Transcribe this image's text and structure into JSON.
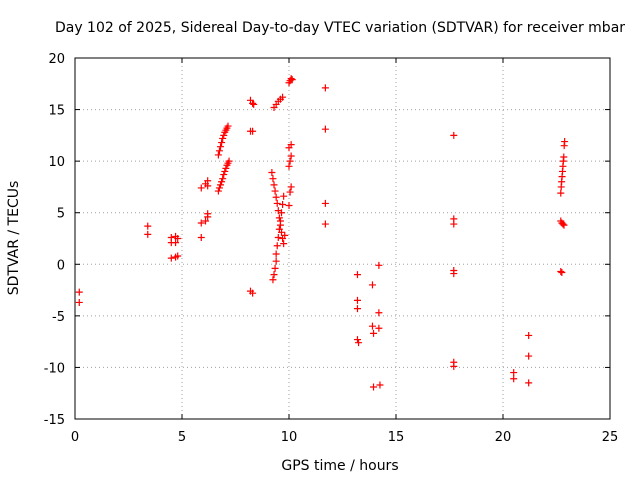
{
  "chart_data": {
    "type": "scatter",
    "title": "Day 102 of 2025, Sidereal Day-to-day VTEC variation (SDTVAR) for receiver mbar",
    "xlabel": "GPS time / hours",
    "ylabel": "SDTVAR / TECUs",
    "xlim": [
      0,
      25
    ],
    "ylim": [
      -15,
      20
    ],
    "xticks": [
      "0",
      "5",
      "10",
      "15",
      "20",
      "25"
    ],
    "yticks": [
      "20",
      "15",
      "10",
      "5",
      "0",
      "-5",
      "-10",
      "-15"
    ],
    "grid": true,
    "marker": "plus",
    "color": "#ff0000",
    "points": [
      [
        0.2,
        -2.7
      ],
      [
        0.2,
        -3.7
      ],
      [
        3.4,
        3.7
      ],
      [
        3.4,
        2.9
      ],
      [
        4.5,
        2.6
      ],
      [
        4.5,
        2.1
      ],
      [
        4.5,
        0.6
      ],
      [
        4.7,
        2.7
      ],
      [
        4.7,
        2.1
      ],
      [
        4.7,
        0.7
      ],
      [
        4.8,
        2.5
      ],
      [
        4.8,
        0.8
      ],
      [
        5.9,
        7.4
      ],
      [
        5.9,
        4.0
      ],
      [
        5.9,
        2.6
      ],
      [
        6.1,
        7.8
      ],
      [
        6.1,
        4.2
      ],
      [
        6.2,
        8.1
      ],
      [
        6.2,
        7.6
      ],
      [
        6.2,
        4.9
      ],
      [
        6.2,
        4.6
      ],
      [
        6.7,
        10.6
      ],
      [
        6.75,
        11.0
      ],
      [
        6.8,
        11.4
      ],
      [
        6.85,
        11.8
      ],
      [
        6.9,
        12.2
      ],
      [
        6.95,
        12.5
      ],
      [
        7.0,
        12.8
      ],
      [
        7.05,
        13.0
      ],
      [
        7.1,
        13.2
      ],
      [
        7.15,
        13.4
      ],
      [
        6.7,
        7.1
      ],
      [
        6.75,
        7.4
      ],
      [
        6.8,
        7.7
      ],
      [
        6.85,
        8.0
      ],
      [
        6.9,
        8.3
      ],
      [
        6.95,
        8.7
      ],
      [
        7.0,
        9.0
      ],
      [
        7.05,
        9.3
      ],
      [
        7.1,
        9.6
      ],
      [
        7.15,
        9.8
      ],
      [
        7.2,
        10.0
      ],
      [
        8.2,
        15.9
      ],
      [
        8.3,
        15.6
      ],
      [
        8.35,
        15.5
      ],
      [
        8.2,
        12.9
      ],
      [
        8.3,
        12.9
      ],
      [
        8.2,
        -2.6
      ],
      [
        8.3,
        -2.8
      ],
      [
        9.25,
        -1.5
      ],
      [
        9.3,
        -1.0
      ],
      [
        9.35,
        -0.4
      ],
      [
        9.4,
        0.3
      ],
      [
        9.4,
        1.0
      ],
      [
        9.45,
        1.8
      ],
      [
        9.5,
        2.6
      ],
      [
        9.55,
        3.4
      ],
      [
        9.6,
        4.2
      ],
      [
        9.65,
        5.0
      ],
      [
        9.7,
        5.8
      ],
      [
        9.75,
        6.6
      ],
      [
        9.2,
        8.9
      ],
      [
        9.25,
        8.3
      ],
      [
        9.3,
        7.7
      ],
      [
        9.35,
        7.1
      ],
      [
        9.4,
        6.5
      ],
      [
        9.45,
        5.9
      ],
      [
        9.5,
        5.2
      ],
      [
        9.55,
        4.5
      ],
      [
        9.6,
        3.8
      ],
      [
        9.65,
        3.1
      ],
      [
        9.7,
        2.5
      ],
      [
        9.75,
        2.0
      ],
      [
        9.8,
        2.8
      ],
      [
        9.3,
        15.2
      ],
      [
        9.4,
        15.5
      ],
      [
        9.5,
        15.8
      ],
      [
        9.6,
        16.0
      ],
      [
        9.7,
        16.2
      ],
      [
        10.0,
        5.7
      ],
      [
        10.05,
        7.0
      ],
      [
        10.1,
        7.5
      ],
      [
        10.0,
        9.5
      ],
      [
        10.05,
        10.0
      ],
      [
        10.1,
        10.5
      ],
      [
        10.0,
        11.3
      ],
      [
        10.1,
        11.6
      ],
      [
        10.0,
        17.6
      ],
      [
        10.05,
        17.8
      ],
      [
        10.1,
        18.0
      ],
      [
        10.15,
        17.9
      ],
      [
        11.7,
        17.1
      ],
      [
        11.7,
        13.1
      ],
      [
        11.7,
        5.9
      ],
      [
        11.7,
        3.9
      ],
      [
        13.2,
        -1.0
      ],
      [
        13.2,
        -3.5
      ],
      [
        13.2,
        -4.3
      ],
      [
        13.2,
        -7.3
      ],
      [
        13.25,
        -7.6
      ],
      [
        13.9,
        -2.0
      ],
      [
        13.9,
        -6.0
      ],
      [
        13.95,
        -6.7
      ],
      [
        13.95,
        -11.9
      ],
      [
        14.2,
        -0.1
      ],
      [
        14.2,
        -4.7
      ],
      [
        14.2,
        -6.2
      ],
      [
        14.25,
        -11.7
      ],
      [
        17.7,
        12.5
      ],
      [
        17.7,
        4.4
      ],
      [
        17.7,
        3.9
      ],
      [
        17.7,
        -0.6
      ],
      [
        17.7,
        -0.9
      ],
      [
        17.7,
        -9.5
      ],
      [
        17.7,
        -9.9
      ],
      [
        20.5,
        -10.5
      ],
      [
        20.5,
        -11.1
      ],
      [
        21.2,
        -6.9
      ],
      [
        21.2,
        -8.9
      ],
      [
        21.2,
        -11.5
      ],
      [
        22.7,
        6.9
      ],
      [
        22.72,
        7.5
      ],
      [
        22.74,
        8.0
      ],
      [
        22.76,
        8.5
      ],
      [
        22.78,
        9.0
      ],
      [
        22.8,
        9.5
      ],
      [
        22.82,
        10.0
      ],
      [
        22.84,
        10.4
      ],
      [
        22.86,
        11.5
      ],
      [
        22.88,
        11.9
      ],
      [
        22.7,
        4.2
      ],
      [
        22.75,
        4.0
      ],
      [
        22.8,
        3.9
      ],
      [
        22.85,
        3.8
      ],
      [
        22.7,
        -0.7
      ],
      [
        22.75,
        -0.8
      ]
    ]
  }
}
